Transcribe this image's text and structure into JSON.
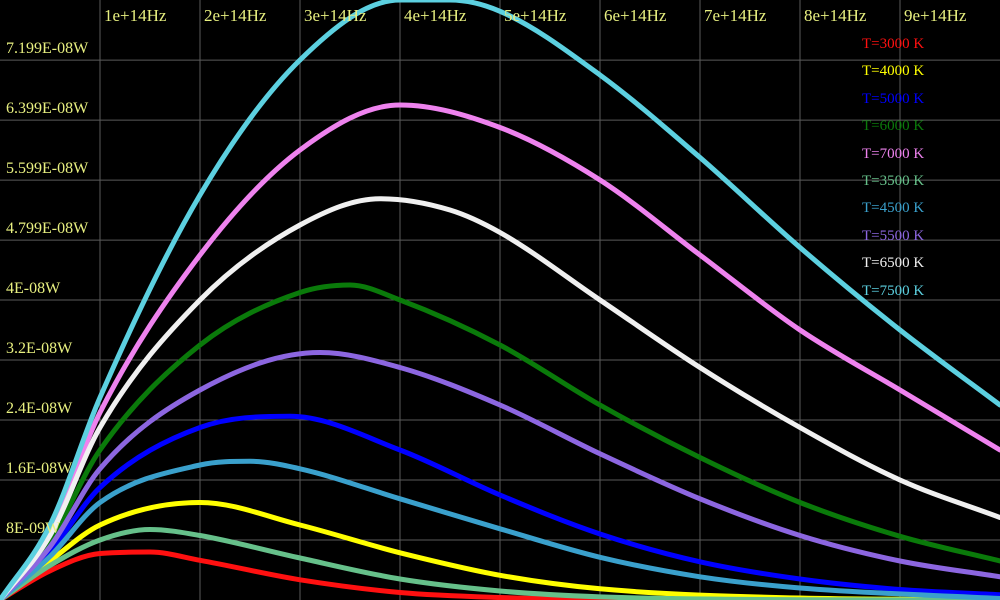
{
  "chart_data": {
    "type": "line",
    "title": "",
    "xlabel": "",
    "ylabel": "",
    "x_unit": "Hz",
    "y_unit": "W",
    "xlim": [
      0,
      1000000000000000.0
    ],
    "ylim": [
      0,
      8e-08
    ],
    "grid": true,
    "legend_position": "top-right",
    "x_tick_values": [
      100000000000000.0,
      200000000000000.0,
      300000000000000.0,
      400000000000000.0,
      500000000000000.0,
      600000000000000.0,
      700000000000000.0,
      800000000000000.0,
      900000000000000.0
    ],
    "x_tick_labels": [
      "1e+14Hz",
      "2e+14Hz",
      "3e+14Hz",
      "4e+14Hz",
      "5e+14Hz",
      "6e+14Hz",
      "7e+14Hz",
      "8e+14Hz",
      "9e+14Hz"
    ],
    "y_tick_values": [
      7.199e-08,
      6.399e-08,
      5.599e-08,
      4.799e-08,
      4e-08,
      3.2e-08,
      2.4e-08,
      1.6e-08,
      8e-09
    ],
    "y_tick_labels": [
      "7.199E-08W",
      "6.399E-08W",
      "5.599E-08W",
      "4.799E-08W",
      "4E-08W",
      "3.2E-08W",
      "2.4E-08W",
      "1.6E-08W",
      "8E-09W"
    ],
    "series": [
      {
        "name": "T=3000 K",
        "temperature_K": 3000,
        "color": "#ff1010",
        "x": [
          0,
          50000000000000.0,
          100000000000000.0,
          150000000000000.0,
          200000000000000.0,
          300000000000000.0,
          400000000000000.0,
          500000000000000.0,
          600000000000000.0,
          800000000000000.0,
          1000000000000000.0
        ],
        "y": [
          0,
          3.9e-09,
          6.2e-09,
          6.4e-09,
          5.3e-09,
          2.7e-09,
          1e-09,
          3.3e-10,
          9e-11,
          6e-12,
          0
        ]
      },
      {
        "name": "T=4000 K",
        "temperature_K": 4000,
        "color": "#ffff00",
        "x": [
          0,
          50000000000000.0,
          100000000000000.0,
          200000000000000.0,
          300000000000000.0,
          400000000000000.0,
          500000000000000.0,
          600000000000000.0,
          800000000000000.0,
          1000000000000000.0
        ],
        "y": [
          0,
          5.2e-09,
          1e-08,
          1.3e-08,
          1e-08,
          6.3e-09,
          3.3e-09,
          1.5e-09,
          2.6e-10,
          4e-11
        ]
      },
      {
        "name": "T=5000 K",
        "temperature_K": 5000,
        "color": "#0000ff",
        "x": [
          0,
          50000000000000.0,
          100000000000000.0,
          200000000000000.0,
          290000000000000.0,
          400000000000000.0,
          500000000000000.0,
          600000000000000.0,
          700000000000000.0,
          800000000000000.0,
          900000000000000.0,
          1000000000000000.0
        ],
        "y": [
          0,
          6.5e-09,
          1.5e-08,
          2.3e-08,
          2.45e-08,
          2e-08,
          1.4e-08,
          8.8e-09,
          5.1e-09,
          2.8e-09,
          1.4e-09,
          7e-10
        ]
      },
      {
        "name": "T=6000 K",
        "temperature_K": 6000,
        "color": "#0a7a0a",
        "x": [
          0,
          50000000000000.0,
          100000000000000.0,
          200000000000000.0,
          300000000000000.0,
          350000000000000.0,
          400000000000000.0,
          500000000000000.0,
          600000000000000.0,
          700000000000000.0,
          800000000000000.0,
          900000000000000.0,
          1000000000000000.0
        ],
        "y": [
          0,
          7.9e-09,
          2e-08,
          3.4e-08,
          4.1e-08,
          4.2e-08,
          4e-08,
          3.4e-08,
          2.6e-08,
          1.9e-08,
          1.3e-08,
          8.5e-09,
          5.2e-09
        ]
      },
      {
        "name": "T=7000 K",
        "temperature_K": 7000,
        "color": "#ee82ee",
        "x": [
          0,
          50000000000000.0,
          100000000000000.0,
          200000000000000.0,
          300000000000000.0,
          400000000000000.0,
          500000000000000.0,
          600000000000000.0,
          700000000000000.0,
          800000000000000.0,
          900000000000000.0,
          1000000000000000.0
        ],
        "y": [
          0,
          9.2e-09,
          2.5e-08,
          4.6e-08,
          6e-08,
          6.6e-08,
          6.3e-08,
          5.6e-08,
          4.6e-08,
          3.6e-08,
          2.8e-08,
          2e-08
        ]
      },
      {
        "name": "T=3500 K",
        "temperature_K": 3500,
        "color": "#66c08a",
        "x": [
          0,
          50000000000000.0,
          100000000000000.0,
          150000000000000.0,
          200000000000000.0,
          300000000000000.0,
          400000000000000.0,
          500000000000000.0,
          600000000000000.0,
          800000000000000.0,
          1000000000000000.0
        ],
        "y": [
          0,
          4.6e-09,
          8e-09,
          9.4e-09,
          8.6e-09,
          5.6e-09,
          2.8e-09,
          1.2e-09,
          4.2e-10,
          4e-11,
          3e-12
        ]
      },
      {
        "name": "T=4500 K",
        "temperature_K": 4500,
        "color": "#3aa0cc",
        "x": [
          0,
          50000000000000.0,
          100000000000000.0,
          200000000000000.0,
          250000000000000.0,
          300000000000000.0,
          400000000000000.0,
          500000000000000.0,
          600000000000000.0,
          700000000000000.0,
          800000000000000.0,
          1000000000000000.0
        ],
        "y": [
          0,
          5.8e-09,
          1.3e-08,
          1.8e-08,
          1.85e-08,
          1.75e-08,
          1.35e-08,
          9.5e-09,
          5.7e-09,
          3.1e-09,
          1.6e-09,
          2e-10
        ]
      },
      {
        "name": "T=5500 K",
        "temperature_K": 5500,
        "color": "#8c66e0",
        "x": [
          0,
          50000000000000.0,
          100000000000000.0,
          200000000000000.0,
          320000000000000.0,
          400000000000000.0,
          500000000000000.0,
          600000000000000.0,
          700000000000000.0,
          800000000000000.0,
          900000000000000.0,
          1000000000000000.0
        ],
        "y": [
          0,
          7.1e-09,
          1.75e-08,
          2.8e-08,
          3.3e-08,
          3.1e-08,
          2.6e-08,
          1.95e-08,
          1.35e-08,
          8.6e-09,
          5.2e-09,
          3.1e-09
        ]
      },
      {
        "name": "T=6500 K",
        "temperature_K": 6500,
        "color": "#f0f0f0",
        "x": [
          0,
          50000000000000.0,
          100000000000000.0,
          200000000000000.0,
          300000000000000.0,
          380000000000000.0,
          450000000000000.0,
          500000000000000.0,
          600000000000000.0,
          700000000000000.0,
          800000000000000.0,
          900000000000000.0,
          1000000000000000.0
        ],
        "y": [
          0,
          8.6e-09,
          2.3e-08,
          4e-08,
          5e-08,
          5.35e-08,
          5.2e-08,
          4.9e-08,
          4e-08,
          3.1e-08,
          2.3e-08,
          1.6e-08,
          1.1e-08
        ]
      },
      {
        "name": "T=7500 K",
        "temperature_K": 7500,
        "color": "#5cd0e0",
        "x": [
          0,
          50000000000000.0,
          100000000000000.0,
          200000000000000.0,
          300000000000000.0,
          400000000000000.0,
          450000000000000.0,
          500000000000000.0,
          600000000000000.0,
          700000000000000.0,
          800000000000000.0,
          900000000000000.0,
          1000000000000000.0
        ],
        "y": [
          0,
          1e-08,
          2.7e-08,
          5.4e-08,
          7.2e-08,
          8e-08,
          8e-08,
          7.85e-08,
          7e-08,
          5.9e-08,
          4.7e-08,
          3.6e-08,
          2.6e-08
        ]
      }
    ]
  }
}
